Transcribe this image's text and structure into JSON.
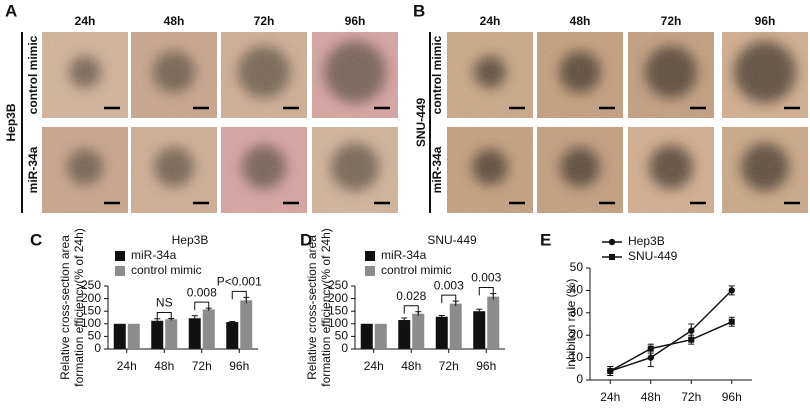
{
  "panels": [
    {
      "label": "A",
      "cell_line": "Hep3B",
      "columns": [
        "24h",
        "48h",
        "72h",
        "96h"
      ],
      "rows": [
        "control mimic",
        "miR-34a"
      ]
    },
    {
      "label": "B",
      "cell_line": "SNU-449",
      "columns": [
        "24h",
        "48h",
        "72h",
        "96h"
      ],
      "rows": [
        "control mimic",
        "miR-34a"
      ]
    }
  ],
  "chart_data": [
    {
      "type": "bar",
      "label": "C",
      "title": "Hep3B",
      "ylabel": [
        "Relative cross-section area",
        "formation efficiency(% of 24h)"
      ],
      "categories": [
        "24h",
        "48h",
        "72h",
        "96h"
      ],
      "series": [
        {
          "name": "miR-34a",
          "color": "#111111",
          "values": [
            100,
            112,
            122,
            107
          ],
          "errors": [
            0,
            8,
            10,
            2
          ]
        },
        {
          "name": "control mimic",
          "color": "#8c8c8c",
          "values": [
            100,
            118,
            157,
            193
          ],
          "errors": [
            0,
            3,
            5,
            12
          ]
        }
      ],
      "annotations": [
        null,
        "NS",
        "0.008",
        "P<0.001"
      ],
      "ylim": [
        0,
        250
      ],
      "yticks": [
        0,
        50,
        100,
        150,
        200,
        250
      ]
    },
    {
      "type": "bar",
      "label": "D",
      "title": "SNU-449",
      "ylabel": [
        "Relative cross-section area",
        "formation efficiency(% of 24h)"
      ],
      "categories": [
        "24h",
        "48h",
        "72h",
        "96h"
      ],
      "series": [
        {
          "name": "miR-34a",
          "color": "#111111",
          "values": [
            100,
            115,
            128,
            150
          ],
          "errors": [
            0,
            8,
            5,
            8
          ]
        },
        {
          "name": "control mimic",
          "color": "#8c8c8c",
          "values": [
            100,
            140,
            180,
            208
          ],
          "errors": [
            0,
            8,
            10,
            12
          ]
        }
      ],
      "annotations": [
        null,
        "0.028",
        "0.003",
        "0.003"
      ],
      "ylim": [
        0,
        250
      ],
      "yticks": [
        0,
        50,
        100,
        150,
        200,
        250
      ]
    },
    {
      "type": "line",
      "label": "E",
      "ylabel": "inhibiton rate (%)",
      "categories": [
        "24h",
        "48h",
        "72h",
        "96h"
      ],
      "series": [
        {
          "name": "Hep3B",
          "color": "#111111",
          "marker": "circle",
          "values": [
            4,
            10,
            22,
            40
          ],
          "errors": [
            2,
            4,
            3,
            2
          ]
        },
        {
          "name": "SNU-449",
          "color": "#111111",
          "marker": "square",
          "values": [
            4,
            14,
            18,
            26
          ],
          "errors": [
            2,
            2,
            2,
            2
          ]
        }
      ],
      "ylim": [
        0,
        50
      ],
      "yticks": [
        0,
        10,
        20,
        30,
        40,
        50
      ]
    }
  ]
}
